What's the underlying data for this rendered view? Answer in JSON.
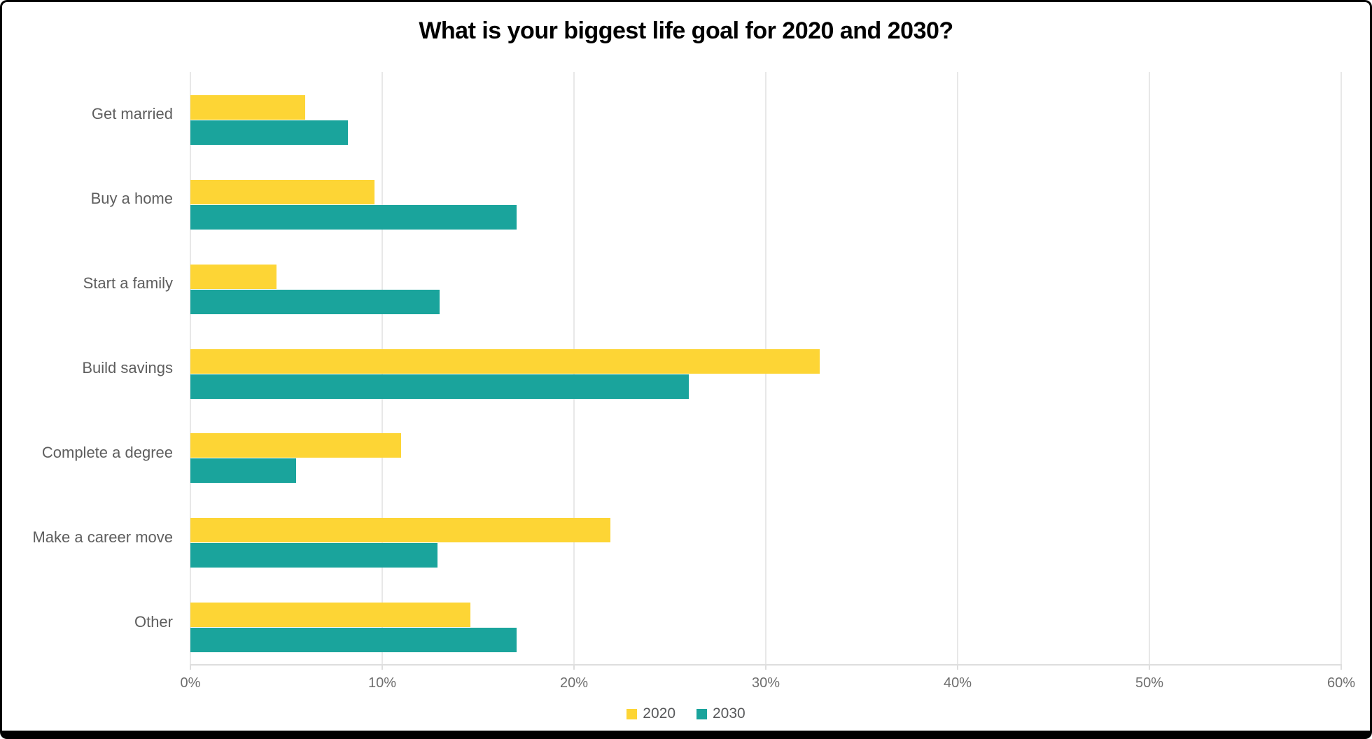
{
  "chart_data": {
    "type": "bar",
    "orientation": "horizontal",
    "title": "What is your biggest life goal for 2020 and 2030?",
    "categories": [
      "Get married",
      "Buy a home",
      "Start a family",
      "Build savings",
      "Complete a degree",
      "Make a career move",
      "Other"
    ],
    "series": [
      {
        "name": "2020",
        "color": "#FDD535",
        "values": [
          6,
          9.6,
          4.5,
          32.8,
          11,
          21.9,
          14.6
        ]
      },
      {
        "name": "2030",
        "color": "#1AA49C",
        "values": [
          8.2,
          17,
          13,
          26,
          5.5,
          12.9,
          17
        ]
      }
    ],
    "xlabel": "",
    "ylabel": "",
    "xlim": [
      0,
      60
    ],
    "x_ticks": [
      "0%",
      "10%",
      "20%",
      "30%",
      "40%",
      "50%",
      "60%"
    ],
    "x_tick_values": [
      0,
      10,
      20,
      30,
      40,
      50,
      60
    ],
    "grid": "vertical",
    "legend_position": "bottom-center"
  },
  "colors": {
    "background": "#FFFFFF",
    "frame_border": "#000000",
    "gridline": "#E8E8E8",
    "axis_line": "#DEDEDE",
    "tick_label": "#6E6E6E",
    "category_label": "#5E5E5E",
    "legend_label": "#58595B",
    "title": "#000000"
  }
}
